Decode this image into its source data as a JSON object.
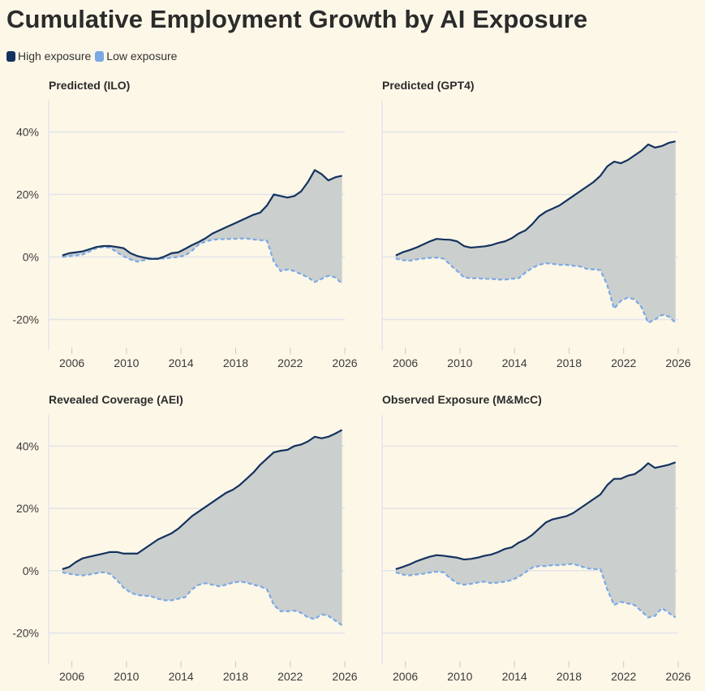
{
  "title": "Cumulative Employment Growth by AI Exposure",
  "legend": [
    {
      "label": "High exposure",
      "color": "#14325e"
    },
    {
      "label": "Low exposure",
      "color": "#7aa9e6"
    }
  ],
  "colors": {
    "background": "#fdf7e8",
    "fill": "#cbcfcd",
    "grid": "#e3e4e9"
  },
  "chart_data": [
    {
      "type": "line",
      "title": "Predicted (ILO)",
      "xlim": [
        2004.3,
        2026
      ],
      "ylim": [
        -30,
        50
      ],
      "x_ticks": [
        2006,
        2010,
        2014,
        2018,
        2022,
        2026
      ],
      "y_ticks": [
        -20,
        0,
        20,
        40
      ],
      "grid": true,
      "series": [
        {
          "name": "High exposure",
          "line": "solid",
          "x": [
            2005.3,
            2005.8,
            2006.3,
            2006.8,
            2007.3,
            2007.8,
            2008.3,
            2008.8,
            2009.3,
            2009.8,
            2010.3,
            2010.8,
            2011.3,
            2011.8,
            2012.3,
            2012.8,
            2013.3,
            2013.8,
            2014.3,
            2014.8,
            2015.3,
            2015.8,
            2016.3,
            2016.8,
            2017.3,
            2017.8,
            2018.3,
            2018.8,
            2019.3,
            2019.8,
            2020.3,
            2020.8,
            2021.3,
            2021.8,
            2022.3,
            2022.8,
            2023.3,
            2023.8,
            2024.3,
            2024.8,
            2025.3,
            2025.8
          ],
          "y": [
            0.5,
            1.2,
            1.5,
            1.8,
            2.5,
            3.2,
            3.5,
            3.5,
            3.2,
            2.8,
            1.2,
            0.3,
            -0.2,
            -0.6,
            -0.6,
            0.2,
            1.2,
            1.5,
            2.6,
            3.8,
            4.8,
            6.0,
            7.5,
            8.5,
            9.5,
            10.5,
            11.5,
            12.5,
            13.5,
            14.2,
            16.5,
            20.0,
            19.5,
            19.0,
            19.5,
            21.0,
            24.0,
            27.8,
            26.5,
            24.5,
            25.5,
            26.0
          ]
        },
        {
          "name": "Low exposure",
          "line": "dashed",
          "x": [
            2005.3,
            2005.8,
            2006.3,
            2006.8,
            2007.3,
            2007.8,
            2008.3,
            2008.8,
            2009.3,
            2009.8,
            2010.3,
            2010.8,
            2011.3,
            2011.8,
            2012.3,
            2012.8,
            2013.3,
            2013.8,
            2014.3,
            2014.8,
            2015.3,
            2015.8,
            2016.3,
            2016.8,
            2017.3,
            2017.8,
            2018.3,
            2018.8,
            2019.3,
            2019.8,
            2020.3,
            2020.8,
            2021.3,
            2021.8,
            2022.3,
            2022.8,
            2023.3,
            2023.8,
            2024.3,
            2024.8,
            2025.3,
            2025.8
          ],
          "y": [
            0.0,
            0.3,
            0.5,
            0.8,
            1.8,
            2.8,
            3.2,
            3.0,
            1.5,
            0.2,
            -0.8,
            -1.5,
            -1.0,
            -0.5,
            -0.5,
            -0.5,
            -0.2,
            0.0,
            0.5,
            2.0,
            4.0,
            5.0,
            5.5,
            5.7,
            5.7,
            5.8,
            5.9,
            5.9,
            5.6,
            5.4,
            5.2,
            -1.5,
            -4.5,
            -4.0,
            -4.5,
            -5.5,
            -6.5,
            -8.0,
            -7.0,
            -6.0,
            -6.5,
            -8.5
          ]
        }
      ]
    },
    {
      "type": "line",
      "title": "Predicted (GPT4)",
      "xlim": [
        2004.3,
        2026
      ],
      "ylim": [
        -30,
        50
      ],
      "x_ticks": [
        2006,
        2010,
        2014,
        2018,
        2022,
        2026
      ],
      "y_ticks": [
        -20,
        0,
        20,
        40
      ],
      "grid": true,
      "series": [
        {
          "name": "High exposure",
          "line": "solid",
          "x": [
            2005.3,
            2005.8,
            2006.3,
            2006.8,
            2007.3,
            2007.8,
            2008.3,
            2008.8,
            2009.3,
            2009.8,
            2010.3,
            2010.8,
            2011.3,
            2011.8,
            2012.3,
            2012.8,
            2013.3,
            2013.8,
            2014.3,
            2014.8,
            2015.3,
            2015.8,
            2016.3,
            2016.8,
            2017.3,
            2017.8,
            2018.3,
            2018.8,
            2019.3,
            2019.8,
            2020.3,
            2020.8,
            2021.3,
            2021.8,
            2022.3,
            2022.8,
            2023.3,
            2023.8,
            2024.3,
            2024.8,
            2025.3,
            2025.8
          ],
          "y": [
            0.5,
            1.5,
            2.2,
            3.0,
            4.0,
            5.0,
            5.8,
            5.6,
            5.5,
            5.0,
            3.5,
            3.0,
            3.2,
            3.4,
            3.8,
            4.5,
            5.0,
            6.0,
            7.5,
            8.5,
            10.5,
            13.0,
            14.5,
            15.5,
            16.5,
            18.0,
            19.5,
            21.0,
            22.5,
            24.0,
            26.0,
            29.0,
            30.5,
            30.0,
            31.0,
            32.5,
            34.0,
            36.0,
            35.0,
            35.5,
            36.5,
            37.0
          ]
        },
        {
          "name": "Low exposure",
          "line": "dashed",
          "x": [
            2005.3,
            2005.8,
            2006.3,
            2006.8,
            2007.3,
            2007.8,
            2008.3,
            2008.8,
            2009.3,
            2009.8,
            2010.3,
            2010.8,
            2011.3,
            2011.8,
            2012.3,
            2012.8,
            2013.3,
            2013.8,
            2014.3,
            2014.8,
            2015.3,
            2015.8,
            2016.3,
            2016.8,
            2017.3,
            2017.8,
            2018.3,
            2018.8,
            2019.3,
            2019.8,
            2020.3,
            2020.8,
            2021.3,
            2021.8,
            2022.3,
            2022.8,
            2023.3,
            2023.8,
            2024.3,
            2024.8,
            2025.3,
            2025.8
          ],
          "y": [
            -0.5,
            -1.0,
            -1.2,
            -0.8,
            -0.5,
            -0.3,
            -0.2,
            -0.5,
            -2.5,
            -4.5,
            -6.5,
            -6.8,
            -6.8,
            -7.0,
            -7.0,
            -7.2,
            -7.2,
            -7.0,
            -6.8,
            -5.0,
            -3.5,
            -2.5,
            -2.0,
            -2.2,
            -2.5,
            -2.5,
            -2.8,
            -3.0,
            -3.8,
            -4.0,
            -4.2,
            -9.0,
            -16.5,
            -14.0,
            -13.0,
            -13.5,
            -16.0,
            -21.0,
            -20.0,
            -18.5,
            -19.0,
            -21.0
          ]
        }
      ]
    },
    {
      "type": "line",
      "title": "Revealed Coverage (AEI)",
      "xlim": [
        2004.3,
        2026
      ],
      "ylim": [
        -30,
        50
      ],
      "x_ticks": [
        2006,
        2010,
        2014,
        2018,
        2022,
        2026
      ],
      "y_ticks": [
        -20,
        0,
        20,
        40
      ],
      "grid": true,
      "series": [
        {
          "name": "High exposure",
          "line": "solid",
          "x": [
            2005.3,
            2005.8,
            2006.3,
            2006.8,
            2007.3,
            2007.8,
            2008.3,
            2008.8,
            2009.3,
            2009.8,
            2010.3,
            2010.8,
            2011.3,
            2011.8,
            2012.3,
            2012.8,
            2013.3,
            2013.8,
            2014.3,
            2014.8,
            2015.3,
            2015.8,
            2016.3,
            2016.8,
            2017.3,
            2017.8,
            2018.3,
            2018.8,
            2019.3,
            2019.8,
            2020.3,
            2020.8,
            2021.3,
            2021.8,
            2022.3,
            2022.8,
            2023.3,
            2023.8,
            2024.3,
            2024.8,
            2025.3,
            2025.8
          ],
          "y": [
            0.5,
            1.2,
            2.8,
            4.0,
            4.5,
            5.0,
            5.5,
            6.0,
            6.0,
            5.5,
            5.5,
            5.5,
            7.0,
            8.5,
            10.0,
            11.0,
            12.0,
            13.5,
            15.5,
            17.5,
            19.0,
            20.5,
            22.0,
            23.5,
            25.0,
            26.0,
            27.5,
            29.5,
            31.5,
            34.0,
            36.0,
            38.0,
            38.5,
            38.8,
            40.0,
            40.5,
            41.5,
            43.0,
            42.5,
            43.0,
            44.0,
            45.2
          ]
        },
        {
          "name": "Low exposure",
          "line": "dashed",
          "x": [
            2005.3,
            2005.8,
            2006.3,
            2006.8,
            2007.3,
            2007.8,
            2008.3,
            2008.8,
            2009.3,
            2009.8,
            2010.3,
            2010.8,
            2011.3,
            2011.8,
            2012.3,
            2012.8,
            2013.3,
            2013.8,
            2014.3,
            2014.8,
            2015.3,
            2015.8,
            2016.3,
            2016.8,
            2017.3,
            2017.8,
            2018.3,
            2018.8,
            2019.3,
            2019.8,
            2020.3,
            2020.8,
            2021.3,
            2021.8,
            2022.3,
            2022.8,
            2023.3,
            2023.8,
            2024.3,
            2024.8,
            2025.3,
            2025.8
          ],
          "y": [
            -0.5,
            -1.0,
            -1.3,
            -1.5,
            -1.2,
            -0.8,
            -0.5,
            -1.0,
            -3.0,
            -5.5,
            -7.0,
            -7.8,
            -8.0,
            -8.2,
            -9.0,
            -9.5,
            -9.5,
            -9.0,
            -8.5,
            -6.0,
            -4.5,
            -4.0,
            -4.5,
            -5.0,
            -4.5,
            -3.8,
            -3.5,
            -3.8,
            -4.5,
            -5.0,
            -6.0,
            -11.0,
            -13.0,
            -13.0,
            -12.8,
            -13.5,
            -15.0,
            -15.5,
            -14.0,
            -14.5,
            -16.0,
            -17.5
          ]
        }
      ]
    },
    {
      "type": "line",
      "title": "Observed Exposure (M&McC)",
      "xlim": [
        2004.3,
        2026
      ],
      "ylim": [
        -30,
        50
      ],
      "x_ticks": [
        2006,
        2010,
        2014,
        2018,
        2022,
        2026
      ],
      "y_ticks": [
        -20,
        0,
        20,
        40
      ],
      "grid": true,
      "series": [
        {
          "name": "High exposure",
          "line": "solid",
          "x": [
            2005.3,
            2005.8,
            2006.3,
            2006.8,
            2007.3,
            2007.8,
            2008.3,
            2008.8,
            2009.3,
            2009.8,
            2010.3,
            2010.8,
            2011.3,
            2011.8,
            2012.3,
            2012.8,
            2013.3,
            2013.8,
            2014.3,
            2014.8,
            2015.3,
            2015.8,
            2016.3,
            2016.8,
            2017.3,
            2017.8,
            2018.3,
            2018.8,
            2019.3,
            2019.8,
            2020.3,
            2020.8,
            2021.3,
            2021.8,
            2022.3,
            2022.8,
            2023.3,
            2023.8,
            2024.3,
            2024.8,
            2025.3,
            2025.8
          ],
          "y": [
            0.5,
            1.2,
            2.0,
            3.0,
            3.8,
            4.5,
            5.0,
            4.8,
            4.5,
            4.2,
            3.6,
            3.8,
            4.2,
            4.8,
            5.2,
            6.0,
            7.0,
            7.5,
            9.0,
            10.0,
            11.5,
            13.5,
            15.5,
            16.5,
            17.0,
            17.5,
            18.5,
            20.0,
            21.5,
            23.0,
            24.5,
            27.5,
            29.5,
            29.5,
            30.5,
            31.0,
            32.5,
            34.5,
            33.0,
            33.5,
            34.0,
            34.8
          ]
        },
        {
          "name": "Low exposure",
          "line": "dashed",
          "x": [
            2005.3,
            2005.8,
            2006.3,
            2006.8,
            2007.3,
            2007.8,
            2008.3,
            2008.8,
            2009.3,
            2009.8,
            2010.3,
            2010.8,
            2011.3,
            2011.8,
            2012.3,
            2012.8,
            2013.3,
            2013.8,
            2014.3,
            2014.8,
            2015.3,
            2015.8,
            2016.3,
            2016.8,
            2017.3,
            2017.8,
            2018.3,
            2018.8,
            2019.3,
            2019.8,
            2020.3,
            2020.8,
            2021.3,
            2021.8,
            2022.3,
            2022.8,
            2023.3,
            2023.8,
            2024.3,
            2024.8,
            2025.3,
            2025.8
          ],
          "y": [
            -0.5,
            -1.2,
            -1.5,
            -1.2,
            -1.0,
            -0.6,
            -0.3,
            -0.5,
            -2.5,
            -4.0,
            -4.5,
            -4.2,
            -3.8,
            -3.5,
            -4.0,
            -3.8,
            -3.5,
            -3.0,
            -2.0,
            -0.5,
            1.0,
            1.5,
            1.5,
            1.8,
            1.8,
            2.0,
            2.2,
            1.5,
            0.8,
            0.5,
            0.5,
            -6.0,
            -11.0,
            -10.0,
            -10.5,
            -11.0,
            -13.0,
            -15.0,
            -14.5,
            -12.0,
            -13.5,
            -15.0
          ]
        }
      ]
    }
  ]
}
